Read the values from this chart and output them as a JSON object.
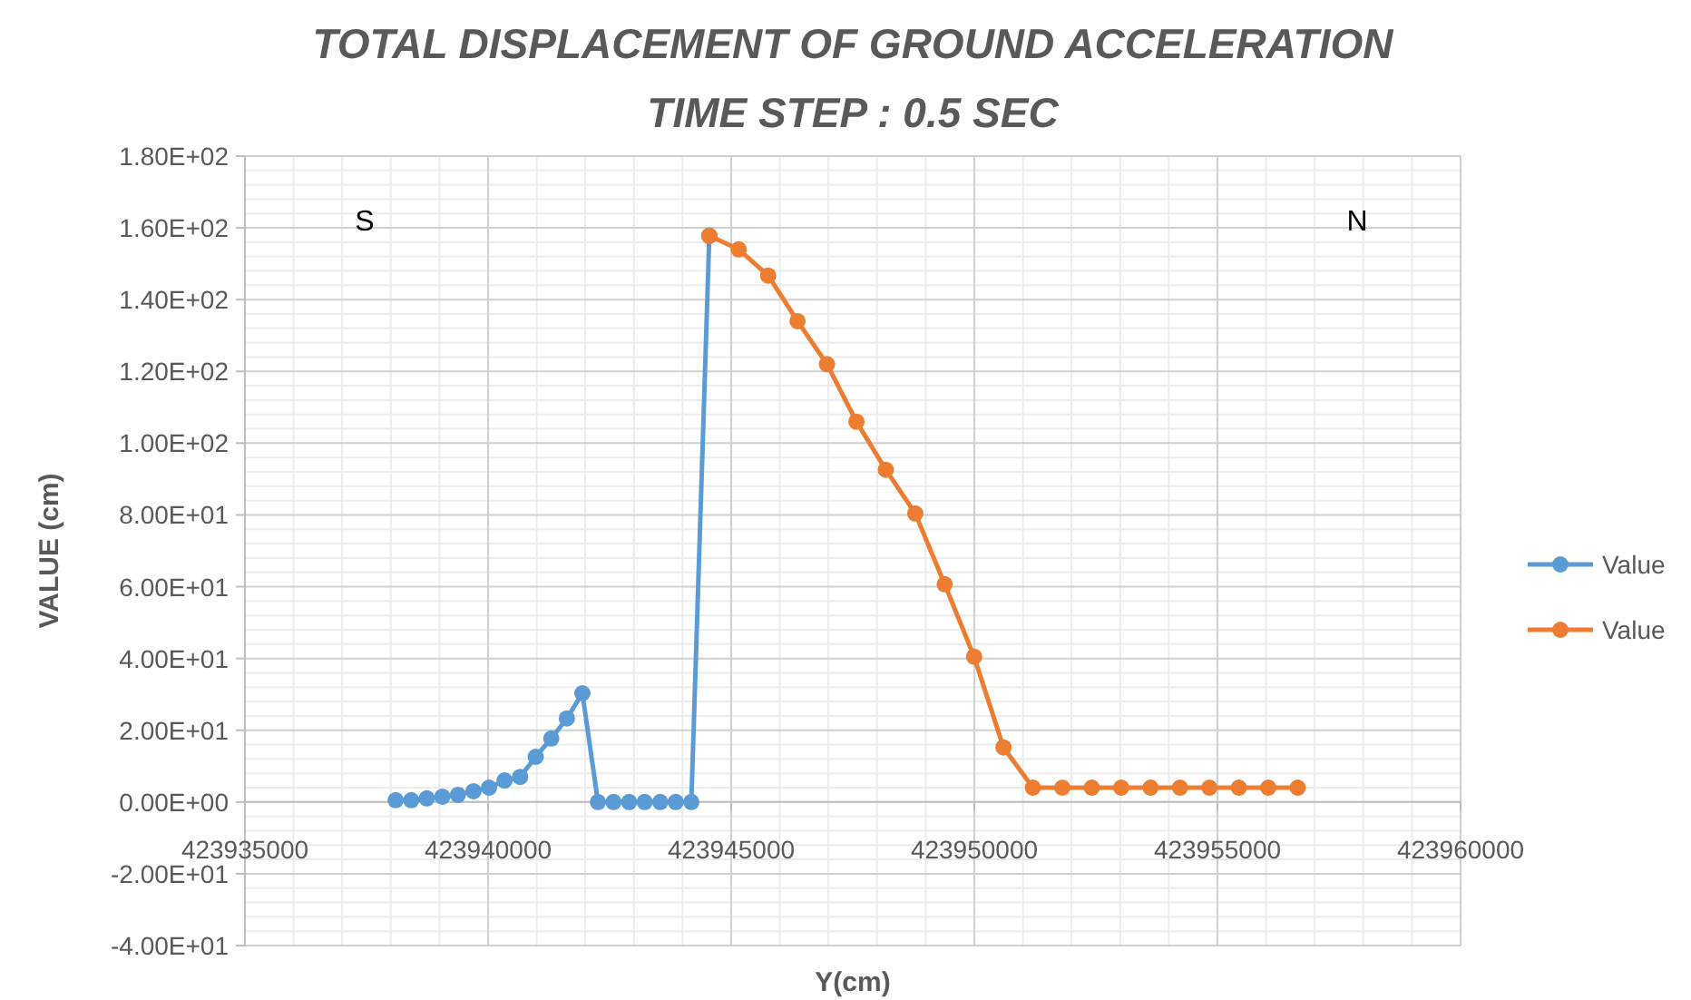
{
  "chart_data": {
    "type": "line",
    "title": "TOTAL DISPLACEMENT OF GROUND ACCELERATION",
    "subtitle": "TIME STEP : 0.5 SEC",
    "xlabel": "Y(cm)",
    "ylabel": "VALUE (cm)",
    "annotations": [
      "S",
      "N"
    ],
    "xlim": [
      423935000,
      423960000
    ],
    "xticks": [
      423935000,
      423940000,
      423945000,
      423950000,
      423955000,
      423960000
    ],
    "ylim": [
      -40,
      180
    ],
    "yticks": [
      {
        "value": -40,
        "label": "-4.00E+01"
      },
      {
        "value": -20,
        "label": "-2.00E+01"
      },
      {
        "value": 0,
        "label": "0.00E+00"
      },
      {
        "value": 20,
        "label": "2.00E+01"
      },
      {
        "value": 40,
        "label": "4.00E+01"
      },
      {
        "value": 60,
        "label": "6.00E+01"
      },
      {
        "value": 80,
        "label": "8.00E+01"
      },
      {
        "value": 100,
        "label": "1.00E+02"
      },
      {
        "value": 120,
        "label": "1.20E+02"
      },
      {
        "value": 140,
        "label": "1.40E+02"
      },
      {
        "value": 160,
        "label": "1.60E+02"
      },
      {
        "value": 180,
        "label": "1.80E+02"
      }
    ],
    "grid": true,
    "legend": "right",
    "marker": "circle",
    "line_style": "solid",
    "series": [
      {
        "name": "Value",
        "color": "#5b9bd5",
        "x": [
          423938100,
          423938420,
          423938740,
          423939060,
          423939380,
          423939700,
          423940020,
          423940340,
          423940660,
          423940980,
          423941300,
          423941620,
          423941940,
          423942260,
          423942580,
          423942900,
          423943220,
          423943540,
          423943860,
          423944180,
          423944550
        ],
        "values": [
          0.5,
          0.5,
          1,
          1.5,
          2,
          3,
          4,
          6,
          7,
          12.6,
          17.7,
          23.3,
          30.3,
          0,
          0,
          0,
          0,
          0,
          0,
          0,
          157.8
        ]
      },
      {
        "name": "Value",
        "color": "#ed7d31",
        "x": [
          423944550,
          423945155,
          423945760,
          423946365,
          423946970,
          423947575,
          423948180,
          423948785,
          423949390,
          423949995,
          423950600,
          423951205,
          423951810,
          423952415,
          423953020,
          423953625,
          423954230,
          423954835,
          423955440,
          423956045,
          423956650
        ],
        "values": [
          157.8,
          154,
          146.7,
          134,
          122,
          106,
          92.6,
          80.4,
          60.7,
          40.5,
          15.2,
          4,
          4,
          4,
          4,
          4,
          4,
          4,
          4,
          4,
          4
        ]
      }
    ]
  }
}
